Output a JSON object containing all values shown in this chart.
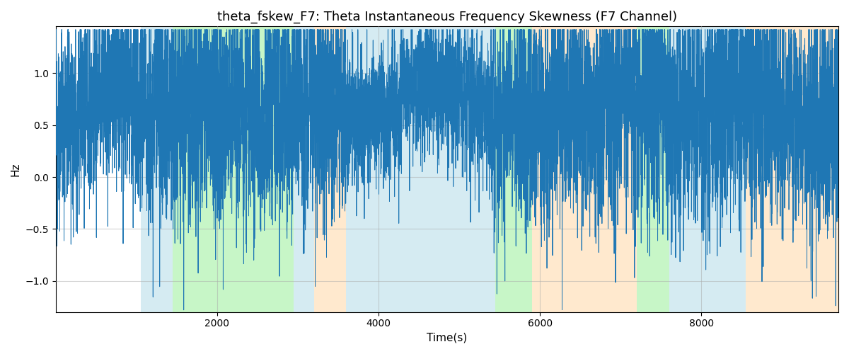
{
  "title": "theta_fskew_F7: Theta Instantaneous Frequency Skewness (F7 Channel)",
  "xlabel": "Time(s)",
  "ylabel": "Hz",
  "xlim": [
    0,
    9700
  ],
  "ylim": [
    -1.3,
    1.45
  ],
  "line_color": "#1f77b4",
  "line_width": 0.7,
  "background_color": "#ffffff",
  "grid_color": "#aaaaaa",
  "grid_alpha": 0.5,
  "yticks": [
    -1.0,
    -0.5,
    0.0,
    0.5,
    1.0
  ],
  "xticks": [
    2000,
    4000,
    6000,
    8000
  ],
  "bands": [
    {
      "xmin": 1050,
      "xmax": 1450,
      "color": "#add8e6",
      "alpha": 0.5
    },
    {
      "xmin": 1450,
      "xmax": 2950,
      "color": "#90ee90",
      "alpha": 0.5
    },
    {
      "xmin": 2950,
      "xmax": 3200,
      "color": "#add8e6",
      "alpha": 0.5
    },
    {
      "xmin": 3200,
      "xmax": 3600,
      "color": "#ffd59e",
      "alpha": 0.5
    },
    {
      "xmin": 3600,
      "xmax": 5450,
      "color": "#add8e6",
      "alpha": 0.5
    },
    {
      "xmin": 5450,
      "xmax": 5900,
      "color": "#90ee90",
      "alpha": 0.5
    },
    {
      "xmin": 5900,
      "xmax": 7200,
      "color": "#ffd59e",
      "alpha": 0.5
    },
    {
      "xmin": 7200,
      "xmax": 7600,
      "color": "#90ee90",
      "alpha": 0.5
    },
    {
      "xmin": 7600,
      "xmax": 8550,
      "color": "#add8e6",
      "alpha": 0.5
    },
    {
      "xmin": 8550,
      "xmax": 9700,
      "color": "#ffd59e",
      "alpha": 0.5
    }
  ],
  "title_fontsize": 13
}
